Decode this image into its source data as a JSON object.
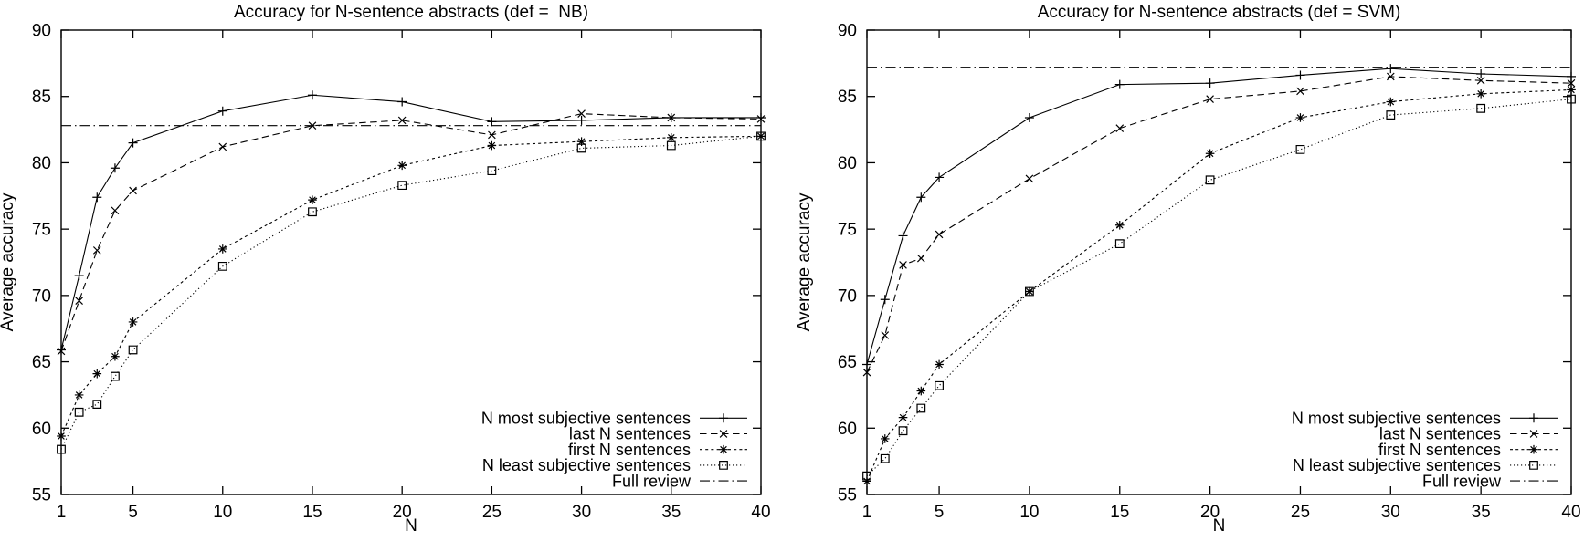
{
  "page": {
    "background": "#ffffff",
    "ink_color": "#000000"
  },
  "chart_data": [
    {
      "type": "line",
      "title": "Accuracy for N-sentence abstracts (def =  NB)",
      "xlabel": "N",
      "ylabel": "Average accuracy",
      "xlim": [
        1,
        40
      ],
      "ylim": [
        55,
        90
      ],
      "x_ticks": [
        1,
        5,
        10,
        15,
        20,
        25,
        30,
        35,
        40
      ],
      "y_ticks": [
        55,
        60,
        65,
        70,
        75,
        80,
        85,
        90
      ],
      "grid": false,
      "legend_position": "bottom-right",
      "x": [
        1,
        2,
        3,
        4,
        5,
        10,
        15,
        20,
        25,
        30,
        35,
        40
      ],
      "series": [
        {
          "name": "N most subjective sentences",
          "marker": "plus",
          "line_style": "solid",
          "values": [
            65.9,
            71.5,
            77.4,
            79.6,
            81.5,
            83.9,
            85.1,
            84.6,
            83.1,
            83.2,
            83.4,
            83.4
          ]
        },
        {
          "name": "last N sentences",
          "marker": "cross",
          "line_style": "dashed",
          "values": [
            65.8,
            69.6,
            73.4,
            76.4,
            77.9,
            81.2,
            82.8,
            83.2,
            82.1,
            83.7,
            83.4,
            83.3
          ]
        },
        {
          "name": "first N sentences",
          "marker": "asterisk",
          "line_style": "dense-dash",
          "values": [
            59.4,
            62.5,
            64.1,
            65.4,
            68.0,
            73.5,
            77.2,
            79.8,
            81.3,
            81.6,
            81.9,
            82.0
          ]
        },
        {
          "name": "N least subjective sentences",
          "marker": "square",
          "line_style": "dotted",
          "values": [
            58.4,
            61.2,
            61.8,
            63.9,
            65.9,
            72.2,
            76.3,
            78.3,
            79.4,
            81.1,
            81.3,
            82.0
          ]
        },
        {
          "name": "Full review",
          "marker": "none",
          "line_style": "dash-dot",
          "value": 82.8
        }
      ]
    },
    {
      "type": "line",
      "title": "Accuracy for N-sentence abstracts (def = SVM)",
      "xlabel": "N",
      "ylabel": "Average accuracy",
      "xlim": [
        1,
        40
      ],
      "ylim": [
        55,
        90
      ],
      "x_ticks": [
        1,
        5,
        10,
        15,
        20,
        25,
        30,
        35,
        40
      ],
      "y_ticks": [
        55,
        60,
        65,
        70,
        75,
        80,
        85,
        90
      ],
      "grid": false,
      "legend_position": "bottom-right",
      "x": [
        1,
        2,
        3,
        4,
        5,
        10,
        15,
        20,
        25,
        30,
        35,
        40
      ],
      "series": [
        {
          "name": "N most subjective sentences",
          "marker": "plus",
          "line_style": "solid",
          "values": [
            64.8,
            69.7,
            74.5,
            77.4,
            78.9,
            83.4,
            85.9,
            86.0,
            86.6,
            87.1,
            86.7,
            86.5
          ]
        },
        {
          "name": "last N sentences",
          "marker": "cross",
          "line_style": "dashed",
          "values": [
            64.2,
            67.0,
            72.3,
            72.8,
            74.6,
            78.8,
            82.6,
            84.8,
            85.4,
            86.5,
            86.2,
            86.0
          ]
        },
        {
          "name": "first N sentences",
          "marker": "asterisk",
          "line_style": "dense-dash",
          "values": [
            56.0,
            59.2,
            60.8,
            62.8,
            64.8,
            70.3,
            75.3,
            80.7,
            83.4,
            84.6,
            85.2,
            85.5
          ]
        },
        {
          "name": "N least subjective sentences",
          "marker": "square",
          "line_style": "dotted",
          "values": [
            56.4,
            57.7,
            59.8,
            61.5,
            63.2,
            70.3,
            73.9,
            78.7,
            81.0,
            83.6,
            84.1,
            84.8
          ]
        },
        {
          "name": "Full review",
          "marker": "none",
          "line_style": "dash-dot",
          "value": 87.2
        }
      ]
    }
  ]
}
